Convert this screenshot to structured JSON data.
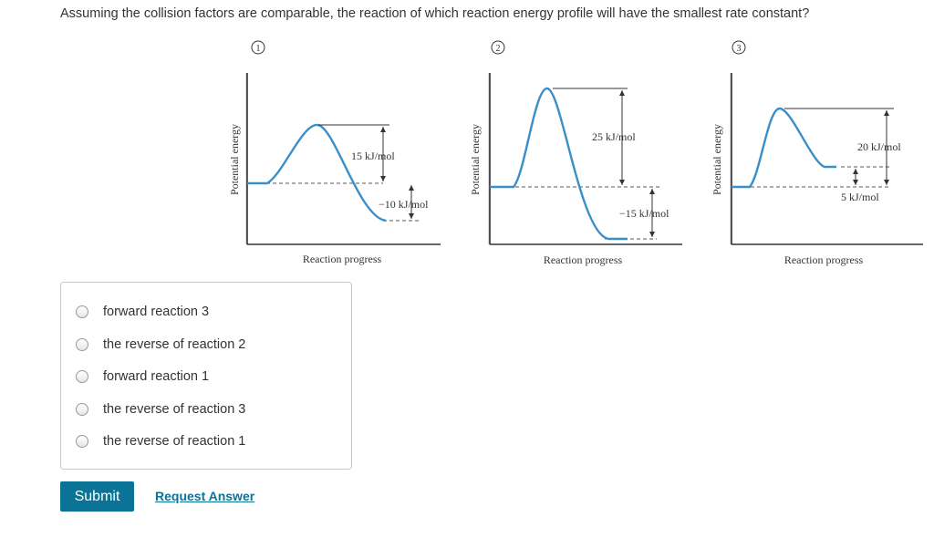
{
  "question": "Assuming the collision factors are comparable, the reaction of which reaction energy profile will have the smallest rate constant?",
  "diagrams": [
    {
      "number": "1",
      "ylabel": "Potential energy",
      "xlabel": "Reaction progress",
      "activation_label": "15 kJ/mol",
      "delta_label": "−10 kJ/mol",
      "activation_kJ_per_mol": 15,
      "delta_kJ_per_mol": -10
    },
    {
      "number": "2",
      "ylabel": "Potential energy",
      "xlabel": "Reaction progress",
      "activation_label": "25 kJ/mol",
      "delta_label": "−15 kJ/mol",
      "activation_kJ_per_mol": 25,
      "delta_kJ_per_mol": -15
    },
    {
      "number": "3",
      "ylabel": "Potential energy",
      "xlabel": "Reaction progress",
      "activation_label": "20 kJ/mol",
      "delta_label": "5 kJ/mol",
      "activation_kJ_per_mol": 20,
      "delta_kJ_per_mol": 5
    }
  ],
  "options": [
    {
      "label": "forward reaction 3",
      "selected": false
    },
    {
      "label": "the reverse of reaction 2",
      "selected": false
    },
    {
      "label": "forward reaction 1",
      "selected": false
    },
    {
      "label": "the reverse of reaction 3",
      "selected": false
    },
    {
      "label": "the reverse of reaction 1",
      "selected": false
    }
  ],
  "buttons": {
    "submit": "Submit",
    "request_answer": "Request Answer"
  },
  "colors": {
    "curve": "#3a8fc9",
    "submit_bg": "#0a7396",
    "link": "#0a7396"
  }
}
